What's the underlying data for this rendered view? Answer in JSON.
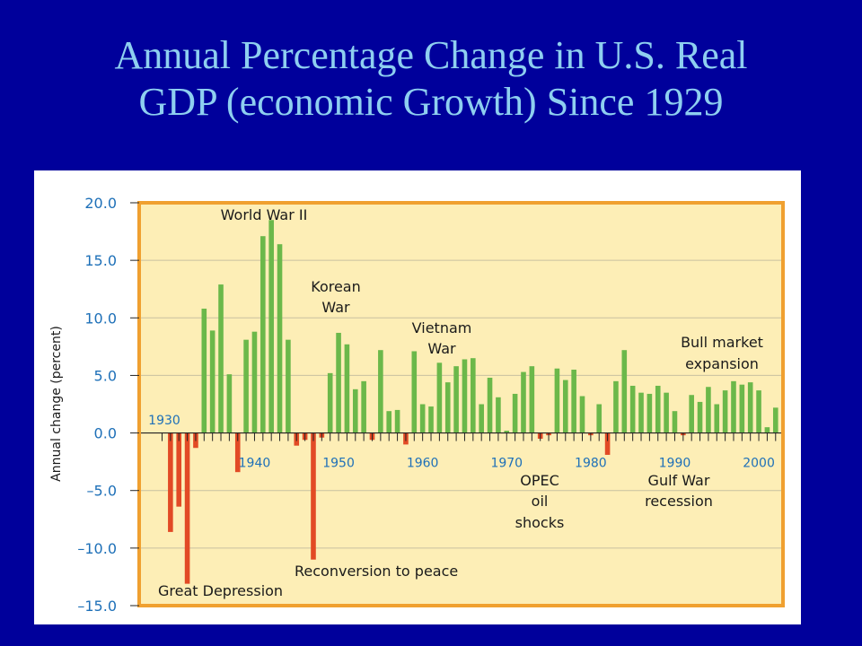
{
  "slide": {
    "title_line1": "Annual Percentage Change in U.S. Real",
    "title_line2": "GDP (economic Growth) Since 1929"
  },
  "colors": {
    "background": "#00009b",
    "title": "#8ecff0",
    "plot_fill": "#fdeeb6",
    "frame": "#f0a030",
    "positive_bar": "#6bb84a",
    "negative_bar": "#e24a25",
    "axis_text": "#1e70b8"
  },
  "chart_data": {
    "type": "bar",
    "title": "",
    "xlabel": "",
    "ylabel": "Annual change (percent)",
    "ylim": [
      -15,
      20
    ],
    "yticks": [
      20,
      15,
      10,
      5,
      0,
      -5,
      -10,
      -15
    ],
    "ytick_labels": [
      "20.0",
      "15.0",
      "10.0",
      "5.0",
      "0.0",
      "–5.0",
      "–10.0",
      "–15.0"
    ],
    "x_start_label": "1930",
    "decade_labels": [
      "1940",
      "1950",
      "1960",
      "1970",
      "1980",
      "1990",
      "2000"
    ],
    "grid": true,
    "years": [
      1929,
      1930,
      1931,
      1932,
      1933,
      1934,
      1935,
      1936,
      1937,
      1938,
      1939,
      1940,
      1941,
      1942,
      1943,
      1944,
      1945,
      1946,
      1947,
      1948,
      1949,
      1950,
      1951,
      1952,
      1953,
      1954,
      1955,
      1956,
      1957,
      1958,
      1959,
      1960,
      1961,
      1962,
      1963,
      1964,
      1965,
      1966,
      1967,
      1968,
      1969,
      1970,
      1971,
      1972,
      1973,
      1974,
      1975,
      1976,
      1977,
      1978,
      1979,
      1980,
      1981,
      1982,
      1983,
      1984,
      1985,
      1986,
      1987,
      1988,
      1989,
      1990,
      1991,
      1992,
      1993,
      1994,
      1995,
      1996,
      1997,
      1998,
      1999,
      2000,
      2001,
      2002
    ],
    "values": [
      0,
      -8.6,
      -6.4,
      -13.1,
      -1.3,
      10.8,
      8.9,
      12.9,
      5.1,
      -3.4,
      8.1,
      8.8,
      17.1,
      18.5,
      16.4,
      8.1,
      -1.1,
      -0.6,
      -11.0,
      -0.4,
      5.2,
      8.7,
      7.7,
      3.8,
      4.5,
      -0.6,
      7.2,
      1.9,
      2.0,
      -1.0,
      7.1,
      2.5,
      2.3,
      6.1,
      4.4,
      5.8,
      6.4,
      6.5,
      2.5,
      4.8,
      3.1,
      0.2,
      3.4,
      5.3,
      5.8,
      -0.5,
      -0.2,
      5.6,
      4.6,
      5.5,
      3.2,
      -0.2,
      2.5,
      -1.9,
      4.5,
      7.2,
      4.1,
      3.5,
      3.4,
      4.1,
      3.5,
      1.9,
      -0.2,
      3.3,
      2.7,
      4.0,
      2.5,
      3.7,
      4.5,
      4.2,
      4.4,
      3.7,
      0.5,
      2.2
    ]
  },
  "annotations": {
    "world_war_ii": "World War II",
    "korean_war_1": "Korean",
    "korean_war_2": "War",
    "vietnam_war_1": "Vietnam",
    "vietnam_war_2": "War",
    "bull_market_1": "Bull market",
    "bull_market_2": "expansion",
    "opec_1": "OPEC",
    "opec_2": "oil",
    "opec_3": "shocks",
    "gulf_war_1": "Gulf War",
    "gulf_war_2": "recession",
    "reconversion": "Reconversion to peace",
    "great_depression": "Great Depression"
  }
}
